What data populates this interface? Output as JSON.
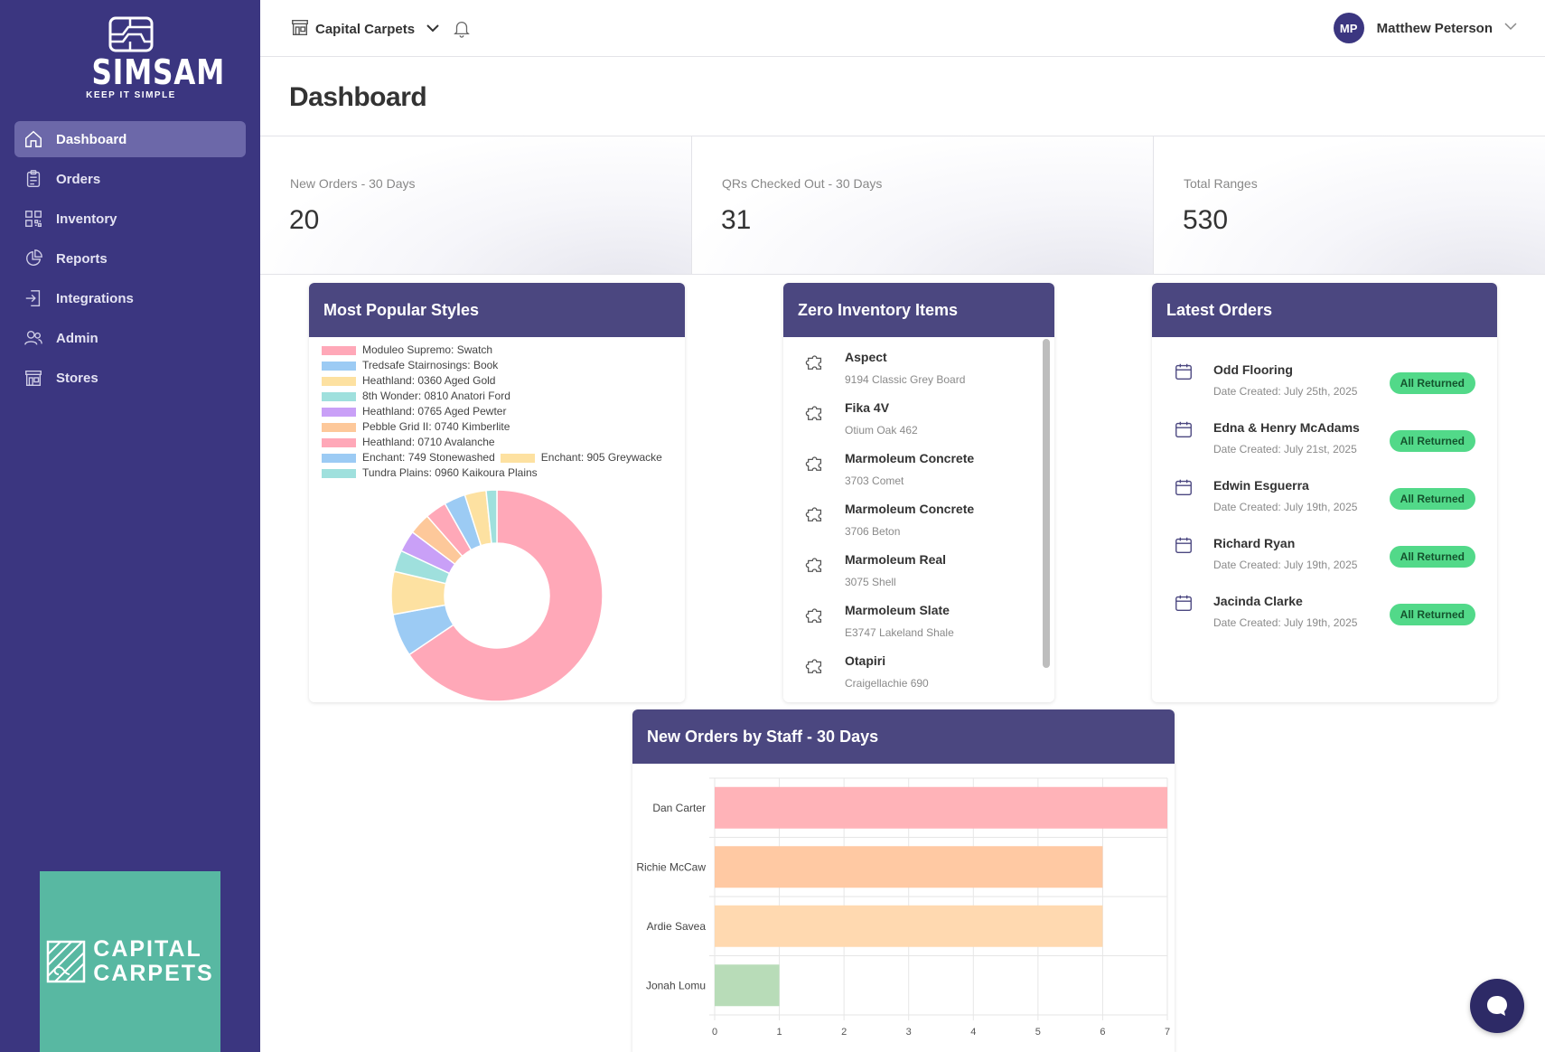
{
  "app": {
    "brand": "SIMSAM",
    "tagline": "KEEP IT SIMPLE",
    "store_logo_line1": "CAPITAL",
    "store_logo_line2": "CARPETS"
  },
  "sidebar": {
    "items": [
      {
        "label": "Dashboard",
        "icon": "home-icon",
        "active": true
      },
      {
        "label": "Orders",
        "icon": "clipboard-icon"
      },
      {
        "label": "Inventory",
        "icon": "qr-code-icon"
      },
      {
        "label": "Reports",
        "icon": "pie-chart-icon"
      },
      {
        "label": "Integrations",
        "icon": "login-arrow-icon"
      },
      {
        "label": "Admin",
        "icon": "users-icon"
      },
      {
        "label": "Stores",
        "icon": "store-icon"
      }
    ]
  },
  "header": {
    "store": "Capital Carpets",
    "user_initials": "MP",
    "user_name": "Matthew Peterson"
  },
  "page": {
    "title": "Dashboard"
  },
  "stats": [
    {
      "label": "New Orders - 30 Days",
      "value": "20"
    },
    {
      "label": "QRs Checked Out - 30 Days",
      "value": "31"
    },
    {
      "label": "Total Ranges",
      "value": "530"
    }
  ],
  "popular_styles": {
    "title": "Most Popular Styles",
    "chart_data": {
      "type": "pie",
      "labels": [
        "Moduleo Supremo: Swatch",
        "Tredsafe Stairnosings: Book",
        "Heathland: 0360 Aged Gold",
        "8th Wonder: 0810 Anatori Ford",
        "Heathland: 0765 Aged Pewter",
        "Pebble Grid II: 0740 Kimberlite",
        "Heathland: 0710 Avalanche",
        "Enchant: 749 Stonewashed",
        "Enchant: 905 Greywacke",
        "Tundra Plains: 0960 Kaikoura Plains"
      ],
      "values": [
        40,
        4,
        4,
        2,
        2,
        2,
        2,
        2,
        2,
        1
      ],
      "colors": [
        "#ffa8b8",
        "#9ccbf4",
        "#fde1a1",
        "#9fe0dd",
        "#c9a0f7",
        "#fdc89a",
        "#ffa8b8",
        "#9ccbf4",
        "#fde1a1",
        "#9fe0dd"
      ],
      "donut": true,
      "legend_position": "top"
    }
  },
  "zero_inventory": {
    "title": "Zero Inventory Items",
    "items": [
      {
        "name": "Aspect",
        "sub": "9194 Classic Grey Board"
      },
      {
        "name": "Fika 4V",
        "sub": "Otium Oak 462"
      },
      {
        "name": "Marmoleum Concrete",
        "sub": "3703 Comet"
      },
      {
        "name": "Marmoleum Concrete",
        "sub": "3706 Beton"
      },
      {
        "name": "Marmoleum Real",
        "sub": "3075 Shell"
      },
      {
        "name": "Marmoleum Slate",
        "sub": "E3747 Lakeland Shale"
      },
      {
        "name": "Otapiri",
        "sub": "Craigellachie 690"
      }
    ]
  },
  "latest_orders": {
    "title": "Latest Orders",
    "items": [
      {
        "name": "Odd Flooring",
        "date": "Date Created: July 25th, 2025",
        "status": "All Returned"
      },
      {
        "name": "Edna & Henry McAdams",
        "date": "Date Created: July 21st, 2025",
        "status": "All Returned"
      },
      {
        "name": "Edwin Esguerra",
        "date": "Date Created: July 19th, 2025",
        "status": "All Returned"
      },
      {
        "name": "Richard Ryan",
        "date": "Date Created: July 19th, 2025",
        "status": "All Returned"
      },
      {
        "name": "Jacinda Clarke",
        "date": "Date Created: July 19th, 2025",
        "status": "All Returned"
      }
    ]
  },
  "staff_orders": {
    "title": "New Orders by Staff - 30 Days",
    "chart_data": {
      "type": "bar",
      "orientation": "horizontal",
      "categories": [
        "Dan Carter",
        "Richie McCaw",
        "Ardie Savea",
        "Jonah Lomu"
      ],
      "values": [
        7,
        6,
        6,
        1
      ],
      "colors": [
        "#ffb3b8",
        "#ffc9a3",
        "#ffd9b0",
        "#b8dcb8"
      ],
      "xlim": [
        0,
        7
      ],
      "xticks": [
        0,
        1,
        2,
        3,
        4,
        5,
        6,
        7
      ],
      "grid": true
    }
  }
}
